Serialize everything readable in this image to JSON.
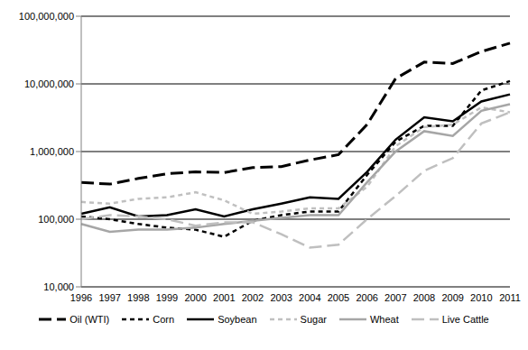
{
  "chart_data": {
    "type": "line",
    "log": "y",
    "grid": true,
    "legend": "bottom",
    "categories": [
      "1996",
      "1997",
      "1998",
      "1999",
      "2000",
      "2001",
      "2002",
      "2003",
      "2004",
      "2005",
      "2006",
      "2007",
      "2008",
      "2009",
      "2010",
      "2011"
    ],
    "ylim": [
      10000,
      100000000
    ],
    "yticks": [
      {
        "value": 10000,
        "label": "10,000"
      },
      {
        "value": 100000,
        "label": "100,000"
      },
      {
        "value": 1000000,
        "label": "1,000,000"
      },
      {
        "value": 10000000,
        "label": "10,000,000"
      },
      {
        "value": 100000000,
        "label": "100,000,000"
      }
    ],
    "series": [
      {
        "name": "Oil (WTI)",
        "color": "#000000",
        "line_style": "long_dash",
        "values": [
          350000,
          330000,
          400000,
          470000,
          500000,
          490000,
          580000,
          600000,
          750000,
          900000,
          2500000,
          12000000,
          21000000,
          20000000,
          30000000,
          40000000
        ]
      },
      {
        "name": "Corn",
        "color": "#000000",
        "line_style": "dashed",
        "values": [
          110000,
          100000,
          85000,
          75000,
          70000,
          55000,
          95000,
          115000,
          130000,
          130000,
          450000,
          1400000,
          2400000,
          2400000,
          8000000,
          11000000
        ]
      },
      {
        "name": "Soybean",
        "color": "#000000",
        "line_style": "solid",
        "values": [
          120000,
          150000,
          110000,
          115000,
          140000,
          110000,
          140000,
          170000,
          210000,
          200000,
          500000,
          1500000,
          3200000,
          2800000,
          5500000,
          7000000
        ]
      },
      {
        "name": "Sugar",
        "color": "#c0c0c0",
        "line_style": "dashed",
        "values": [
          180000,
          170000,
          200000,
          210000,
          250000,
          190000,
          120000,
          130000,
          145000,
          145000,
          300000,
          1200000,
          2300000,
          2500000,
          4500000,
          3800000
        ]
      },
      {
        "name": "Wheat",
        "color": "#a6a6a6",
        "line_style": "solid",
        "values": [
          85000,
          65000,
          70000,
          70000,
          75000,
          85000,
          95000,
          105000,
          115000,
          115000,
          350000,
          1000000,
          2000000,
          1700000,
          4000000,
          5000000
        ]
      },
      {
        "name": "Live Cattle",
        "color": "#bfbfbf",
        "line_style": "long_dash",
        "values": [
          100000,
          115000,
          110000,
          100000,
          80000,
          90000,
          90000,
          60000,
          38000,
          42000,
          100000,
          220000,
          520000,
          800000,
          2600000,
          3800000
        ]
      }
    ]
  }
}
